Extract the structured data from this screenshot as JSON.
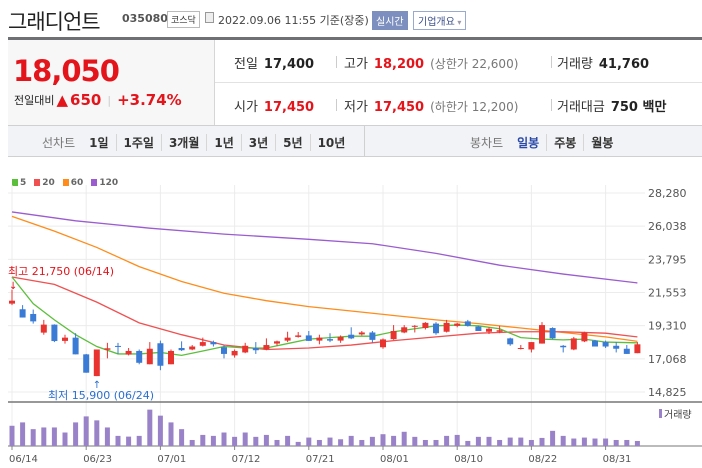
{
  "header": {
    "name": "그래디언트",
    "code": "035080",
    "market": "코스닥",
    "datetime": "2022.09.06 11:55 기준(장중)",
    "realtime_label": "실시간",
    "company_label": "기업개요"
  },
  "quote": {
    "price": "18,050",
    "change_label": "전일대비",
    "change": "650",
    "change_pct": "+3.74%",
    "direction": "up",
    "prev_close_label": "전일",
    "prev_close": "17,400",
    "high_label": "고가",
    "high": "18,200",
    "upper_limit": "(상한가 22,600)",
    "volume_label": "거래량",
    "volume": "41,760",
    "open_label": "시가",
    "open": "17,450",
    "low_label": "저가",
    "low": "17,450",
    "lower_limit": "(하한가 12,200)",
    "amount_label": "거래대금",
    "amount": "750 백만"
  },
  "toolbar": {
    "line_label": "선차트",
    "line_periods": [
      "1일",
      "1주일",
      "3개월",
      "1년",
      "3년",
      "5년",
      "10년"
    ],
    "candle_label": "봉차트",
    "candle_periods": [
      "일봉",
      "주봉",
      "월봉"
    ],
    "selected": "일봉"
  },
  "colors": {
    "up": "#e8332f",
    "down": "#3a7bd5",
    "ma5": "#5cbf3c",
    "ma20": "#f05050",
    "ma60": "#ff8c1a",
    "ma120": "#9b5ccf",
    "volume": "#9a82c8"
  },
  "chart_data": {
    "type": "candlestick",
    "legend": [
      "5",
      "20",
      "60",
      "120"
    ],
    "y_ticks": [
      28280,
      26038,
      23795,
      21553,
      19310,
      17068,
      14825
    ],
    "y_tick_labels": [
      "28,280",
      "26,038",
      "23,795",
      "21,553",
      "19,310",
      "17,068",
      "14,825"
    ],
    "ylim": [
      14825,
      28280
    ],
    "x_tick_labels": [
      "06/14",
      "06/23",
      "07/01",
      "07/12",
      "07/21",
      "08/01",
      "08/10",
      "08/22",
      "08/31"
    ],
    "x_tick_every": 7,
    "annotations": {
      "high": "최고 21,750 (06/14)",
      "low": "최저 15,900 (06/24)",
      "high_index": 0,
      "low_index": 8
    },
    "volume_label": "거래량",
    "ohlc": [
      [
        20800,
        21750,
        20700,
        21000
      ],
      [
        20420,
        20700,
        19860,
        19860
      ],
      [
        20100,
        20400,
        19450,
        19600
      ],
      [
        18840,
        19700,
        18700,
        19380
      ],
      [
        19380,
        19400,
        18200,
        18270
      ],
      [
        18280,
        18700,
        18100,
        18500
      ],
      [
        18500,
        18800,
        17370,
        17370
      ],
      [
        17370,
        17400,
        16130,
        16130
      ],
      [
        15900,
        17700,
        15900,
        17700
      ],
      [
        17680,
        18150,
        17100,
        17780
      ],
      [
        17940,
        18150,
        17400,
        17900
      ],
      [
        17360,
        17800,
        17300,
        17600
      ],
      [
        17600,
        17700,
        16700,
        16800
      ],
      [
        16700,
        18200,
        16700,
        17750
      ],
      [
        18120,
        18300,
        16300,
        16600
      ],
      [
        16700,
        17700,
        16700,
        17600
      ],
      [
        17800,
        18250,
        17600,
        17650
      ],
      [
        17700,
        18000,
        17650,
        17900
      ],
      [
        17950,
        18500,
        17900,
        18200
      ],
      [
        18200,
        18300,
        17900,
        18050
      ],
      [
        17850,
        18000,
        17100,
        17400
      ],
      [
        17300,
        17700,
        17150,
        17600
      ],
      [
        17500,
        18150,
        17450,
        17950
      ],
      [
        17800,
        18200,
        17400,
        17650
      ],
      [
        17700,
        18450,
        17650,
        18000
      ],
      [
        18100,
        18300,
        17950,
        18250
      ],
      [
        18300,
        18900,
        18200,
        18500
      ],
      [
        18550,
        18880,
        18500,
        18650
      ],
      [
        18650,
        18950,
        18280,
        18280
      ],
      [
        18300,
        18700,
        18050,
        18500
      ],
      [
        18400,
        18800,
        18200,
        18300
      ],
      [
        18300,
        18650,
        18150,
        18550
      ],
      [
        18700,
        19200,
        18400,
        18450
      ],
      [
        18720,
        18950,
        18650,
        18850
      ],
      [
        18850,
        18950,
        18150,
        18350
      ],
      [
        17850,
        18450,
        17750,
        18380
      ],
      [
        18400,
        19350,
        18350,
        18950
      ],
      [
        18850,
        19350,
        18800,
        19200
      ],
      [
        19250,
        19350,
        18850,
        19300
      ],
      [
        19150,
        19550,
        19050,
        19500
      ],
      [
        19450,
        19550,
        18700,
        18800
      ],
      [
        18900,
        19700,
        18850,
        19500
      ],
      [
        19300,
        19500,
        19200,
        19450
      ],
      [
        19600,
        19700,
        19250,
        19300
      ],
      [
        19250,
        19300,
        18950,
        18950
      ],
      [
        18900,
        19200,
        18750,
        19100
      ],
      [
        18900,
        19300,
        18800,
        19000
      ],
      [
        18450,
        18500,
        17950,
        18050
      ],
      [
        17750,
        18000,
        17700,
        17800
      ],
      [
        17700,
        18200,
        17500,
        18200
      ],
      [
        18100,
        19550,
        18100,
        19350
      ],
      [
        19150,
        19200,
        18400,
        18450
      ],
      [
        17950,
        18000,
        17500,
        17850
      ],
      [
        17700,
        18550,
        17650,
        18450
      ],
      [
        18250,
        18900,
        18200,
        18850
      ],
      [
        18300,
        18350,
        17900,
        17900
      ],
      [
        18200,
        18300,
        17800,
        17900
      ],
      [
        17950,
        18200,
        17500,
        17750
      ],
      [
        17750,
        18000,
        17400,
        17400
      ],
      [
        17450,
        18200,
        17450,
        18050
      ]
    ],
    "volumes": [
      168000,
      196000,
      140000,
      154000,
      154000,
      112000,
      196000,
      246000,
      213000,
      154000,
      84000,
      78000,
      84000,
      302000,
      252000,
      196000,
      140000,
      50000,
      92000,
      84000,
      112000,
      76000,
      112000,
      76000,
      92000,
      50000,
      84000,
      34000,
      70000,
      50000,
      70000,
      56000,
      84000,
      50000,
      76000,
      98000,
      84000,
      118000,
      76000,
      50000,
      50000,
      84000,
      92000,
      42000,
      76000,
      76000,
      50000,
      70000,
      70000,
      50000,
      67000,
      126000,
      84000,
      62000,
      70000,
      62000,
      62000,
      50000,
      50000,
      41760
    ],
    "ma5": [
      [
        0,
        22600
      ],
      [
        2,
        20800
      ],
      [
        4,
        19700
      ],
      [
        6,
        18700
      ],
      [
        8,
        17900
      ],
      [
        10,
        17400
      ],
      [
        12,
        17400
      ],
      [
        14,
        17500
      ],
      [
        16,
        17300
      ],
      [
        18,
        17600
      ],
      [
        20,
        17900
      ],
      [
        22,
        17800
      ],
      [
        24,
        17800
      ],
      [
        26,
        18100
      ],
      [
        28,
        18400
      ],
      [
        30,
        18500
      ],
      [
        32,
        18600
      ],
      [
        34,
        18600
      ],
      [
        36,
        18900
      ],
      [
        38,
        19100
      ],
      [
        40,
        19300
      ],
      [
        42,
        19350
      ],
      [
        44,
        19300
      ],
      [
        46,
        19100
      ],
      [
        48,
        18500
      ],
      [
        50,
        18400
      ],
      [
        52,
        18350
      ],
      [
        54,
        18400
      ],
      [
        56,
        18200
      ],
      [
        59,
        18150
      ]
    ],
    "ma20": [
      [
        0,
        22600
      ],
      [
        4,
        22100
      ],
      [
        8,
        20900
      ],
      [
        12,
        19500
      ],
      [
        16,
        18700
      ],
      [
        20,
        18000
      ],
      [
        24,
        17700
      ],
      [
        28,
        17800
      ],
      [
        32,
        18000
      ],
      [
        36,
        18300
      ],
      [
        40,
        18550
      ],
      [
        44,
        18800
      ],
      [
        48,
        18900
      ],
      [
        52,
        18900
      ],
      [
        56,
        18800
      ],
      [
        59,
        18550
      ]
    ],
    "ma60": [
      [
        0,
        26700
      ],
      [
        4,
        25700
      ],
      [
        8,
        24600
      ],
      [
        12,
        23300
      ],
      [
        16,
        22300
      ],
      [
        20,
        21500
      ],
      [
        24,
        21000
      ],
      [
        28,
        20600
      ],
      [
        32,
        20300
      ],
      [
        36,
        20000
      ],
      [
        40,
        19700
      ],
      [
        44,
        19450
      ],
      [
        48,
        19150
      ],
      [
        52,
        18850
      ],
      [
        56,
        18550
      ],
      [
        59,
        18250
      ]
    ],
    "ma120": [
      [
        0,
        27000
      ],
      [
        6,
        26400
      ],
      [
        13,
        25900
      ],
      [
        20,
        25500
      ],
      [
        28,
        25150
      ],
      [
        34,
        24850
      ],
      [
        40,
        24200
      ],
      [
        46,
        23400
      ],
      [
        52,
        22800
      ],
      [
        59,
        22200
      ]
    ]
  }
}
